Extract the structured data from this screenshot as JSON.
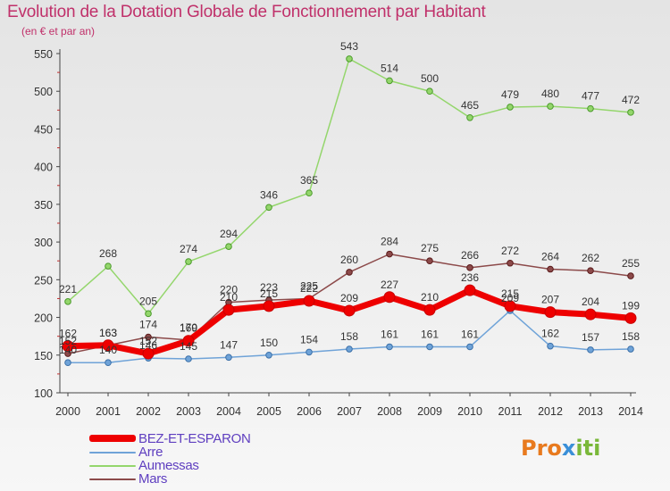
{
  "title": "Evolution de la Dotation Globale de Fonctionnement par Habitant",
  "subtitle": "(en € et par an)",
  "logo": {
    "part1": "Pro",
    "part2": "x",
    "part3": "iti"
  },
  "colors": {
    "bez_esparon": "#ee0000",
    "arre": "#6fa3d8",
    "aumessas": "#94d66c",
    "mars": "#8c4a4a",
    "text": "#c0306a",
    "legend_text": "#5f3fc0"
  },
  "chart_data": {
    "type": "line",
    "title": "Evolution de la Dotation Globale de Fonctionnement par Habitant",
    "subtitle": "(en € et par an)",
    "x": [
      "2000",
      "2001",
      "2002",
      "2003",
      "2004",
      "2005",
      "2006",
      "2007",
      "2008",
      "2009",
      "2010",
      "2011",
      "2012",
      "2013",
      "2014"
    ],
    "ylim": [
      100,
      550
    ],
    "yticks": [
      100,
      150,
      200,
      250,
      300,
      350,
      400,
      450,
      500,
      550
    ],
    "grid": false,
    "legend": "bottom-left",
    "series": [
      {
        "name": "BEZ-ET-ESPARON",
        "color": "#ee0000",
        "width": 7,
        "markerR": 6,
        "stroke": "#c80000",
        "values": [
          162,
          163,
          152,
          169,
          210,
          215,
          222,
          209,
          227,
          210,
          236,
          215,
          207,
          204,
          199
        ]
      },
      {
        "name": "Arre",
        "color": "#6fa3d8",
        "width": 1.5,
        "markerR": 3.3,
        "stroke": "#3a6fa8",
        "values": [
          140,
          140,
          146,
          145,
          147,
          150,
          154,
          158,
          161,
          161,
          161,
          209,
          162,
          157,
          158
        ]
      },
      {
        "name": "Aumessas",
        "color": "#94d66c",
        "width": 1.5,
        "markerR": 3.3,
        "stroke": "#4a9a2a",
        "values": [
          221,
          268,
          205,
          274,
          294,
          346,
          365,
          543,
          514,
          500,
          465,
          479,
          480,
          477,
          472
        ]
      },
      {
        "name": "Mars",
        "color": "#8c4a4a",
        "width": 1.5,
        "markerR": 3.3,
        "stroke": "#5a1a1a",
        "values": [
          152,
          163,
          174,
          170,
          220,
          223,
          225,
          260,
          284,
          275,
          266,
          272,
          264,
          262,
          255
        ]
      }
    ]
  }
}
